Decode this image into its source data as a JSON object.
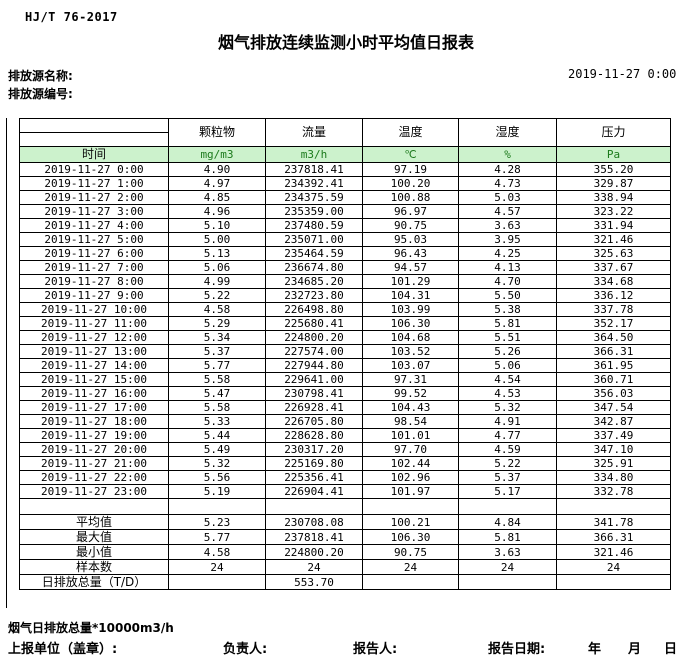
{
  "meta": {
    "standard": "HJ/T  76-2017",
    "title": "烟气排放连续监测小时平均值日报表",
    "source_name_label": "排放源名称:",
    "source_id_label": "排放源编号:",
    "report_datetime": "2019-11-27 0:00"
  },
  "colors": {
    "unit_row_bg": "#ccf2cc",
    "unit_row_text": "#1c7a1c",
    "border": "#000000"
  },
  "table": {
    "headers": [
      "",
      "颗粒物",
      "流量",
      "温度",
      "湿度",
      "压力"
    ],
    "units_row": [
      "时间",
      "mg/m3",
      "m3/h",
      "℃",
      "%",
      "Pa"
    ],
    "rows": [
      [
        "2019-11-27 0:00",
        "4.90",
        "237818.41",
        "97.19",
        "4.28",
        "355.20"
      ],
      [
        "2019-11-27 1:00",
        "4.97",
        "234392.41",
        "100.20",
        "4.73",
        "329.87"
      ],
      [
        "2019-11-27 2:00",
        "4.85",
        "234375.59",
        "100.88",
        "5.03",
        "338.94"
      ],
      [
        "2019-11-27 3:00",
        "4.96",
        "235359.00",
        "96.97",
        "4.57",
        "323.22"
      ],
      [
        "2019-11-27 4:00",
        "5.10",
        "237480.59",
        "90.75",
        "3.63",
        "331.94"
      ],
      [
        "2019-11-27 5:00",
        "5.00",
        "235071.00",
        "95.03",
        "3.95",
        "321.46"
      ],
      [
        "2019-11-27 6:00",
        "5.13",
        "235464.59",
        "96.43",
        "4.25",
        "325.63"
      ],
      [
        "2019-11-27 7:00",
        "5.06",
        "236674.80",
        "94.57",
        "4.13",
        "337.67"
      ],
      [
        "2019-11-27 8:00",
        "4.99",
        "234685.20",
        "101.29",
        "4.70",
        "334.68"
      ],
      [
        "2019-11-27 9:00",
        "5.22",
        "232723.80",
        "104.31",
        "5.50",
        "336.12"
      ],
      [
        "2019-11-27 10:00",
        "4.58",
        "226498.80",
        "103.99",
        "5.38",
        "337.78"
      ],
      [
        "2019-11-27 11:00",
        "5.29",
        "225680.41",
        "106.30",
        "5.81",
        "352.17"
      ],
      [
        "2019-11-27 12:00",
        "5.34",
        "224800.20",
        "104.68",
        "5.51",
        "364.50"
      ],
      [
        "2019-11-27 13:00",
        "5.37",
        "227574.00",
        "103.52",
        "5.26",
        "366.31"
      ],
      [
        "2019-11-27 14:00",
        "5.77",
        "227944.80",
        "103.07",
        "5.06",
        "361.95"
      ],
      [
        "2019-11-27 15:00",
        "5.58",
        "229641.00",
        "97.31",
        "4.54",
        "360.71"
      ],
      [
        "2019-11-27 16:00",
        "5.47",
        "230798.41",
        "99.52",
        "4.53",
        "356.03"
      ],
      [
        "2019-11-27 17:00",
        "5.58",
        "226928.41",
        "104.43",
        "5.32",
        "347.54"
      ],
      [
        "2019-11-27 18:00",
        "5.33",
        "226705.80",
        "98.54",
        "4.91",
        "342.87"
      ],
      [
        "2019-11-27 19:00",
        "5.44",
        "228628.80",
        "101.01",
        "4.77",
        "337.49"
      ],
      [
        "2019-11-27 20:00",
        "5.49",
        "230317.20",
        "97.70",
        "4.59",
        "347.10"
      ],
      [
        "2019-11-27 21:00",
        "5.32",
        "225169.80",
        "102.44",
        "5.22",
        "325.91"
      ],
      [
        "2019-11-27 22:00",
        "5.56",
        "225356.41",
        "102.96",
        "5.37",
        "334.80"
      ],
      [
        "2019-11-27 23:00",
        "5.19",
        "226904.41",
        "101.97",
        "5.17",
        "332.78"
      ]
    ],
    "summary": [
      [
        "平均值",
        "5.23",
        "230708.08",
        "100.21",
        "4.84",
        "341.78"
      ],
      [
        "最大值",
        "5.77",
        "237818.41",
        "106.30",
        "5.81",
        "366.31"
      ],
      [
        "最小值",
        "4.58",
        "224800.20",
        "90.75",
        "3.63",
        "321.46"
      ],
      [
        "样本数",
        "24",
        "24",
        "24",
        "24",
        "24"
      ],
      [
        "日排放总量（T/D）",
        "",
        "553.70",
        "",
        "",
        ""
      ]
    ]
  },
  "footer": {
    "note": "烟气日排放总量*10000m3/h",
    "report_unit_label": "上报单位（盖章）:",
    "responsible_label": "负责人:",
    "reporter_label": "报告人:",
    "report_date_label": "报告日期:",
    "year_label": "年",
    "month_label": "月",
    "day_label": "日"
  }
}
